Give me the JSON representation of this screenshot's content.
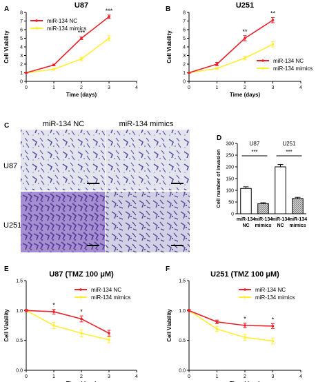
{
  "figure": {
    "panel_letters": [
      "A",
      "B",
      "C",
      "D",
      "E",
      "F"
    ],
    "micrograph": {
      "col_labels": [
        "miR-134 NC",
        "miR-134 mimics"
      ],
      "row_labels": [
        "U87",
        "U251"
      ]
    }
  },
  "chart_data": [
    {
      "panel": "A",
      "type": "line",
      "title": "U87",
      "xlabel": "Time (days)",
      "ylabel": "Cell Viability",
      "xlim": [
        0,
        4
      ],
      "ylim": [
        0,
        8
      ],
      "xticks": [
        0,
        1,
        2,
        3,
        4
      ],
      "yticks": [
        0,
        1,
        2,
        3,
        4,
        5,
        6,
        7,
        8
      ],
      "x": [
        0,
        1,
        2,
        3
      ],
      "series": [
        {
          "name": "miR-134 NC",
          "color": "#e8212a",
          "values": [
            1.0,
            1.9,
            5.0,
            7.5
          ],
          "errors": [
            0.05,
            0.1,
            0.15,
            0.2
          ]
        },
        {
          "name": "miR-134 mimics",
          "color": "#ffee33",
          "values": [
            1.0,
            1.4,
            2.6,
            5.0
          ],
          "errors": [
            0.05,
            0.1,
            0.2,
            0.3
          ]
        }
      ],
      "significance": [
        {
          "x": 2,
          "label": "***"
        },
        {
          "x": 3,
          "label": "***"
        }
      ],
      "legend": "top-left"
    },
    {
      "panel": "B",
      "type": "line",
      "title": "U251",
      "xlabel": "Time (days)",
      "ylabel": "Cell Viability",
      "xlim": [
        0,
        4
      ],
      "ylim": [
        0,
        8
      ],
      "xticks": [
        0,
        1,
        2,
        3,
        4
      ],
      "yticks": [
        0,
        1,
        2,
        3,
        4,
        5,
        6,
        7,
        8
      ],
      "x": [
        0,
        1,
        2,
        3
      ],
      "series": [
        {
          "name": "miR-134 NC",
          "color": "#e8212a",
          "values": [
            1.0,
            2.0,
            5.0,
            7.1
          ],
          "errors": [
            0.05,
            0.2,
            0.3,
            0.3
          ]
        },
        {
          "name": "miR-134 mimics",
          "color": "#ffee33",
          "values": [
            1.0,
            1.5,
            2.7,
            4.3
          ],
          "errors": [
            0.05,
            0.1,
            0.2,
            0.3
          ]
        }
      ],
      "significance": [
        {
          "x": 2,
          "label": "**"
        },
        {
          "x": 3,
          "label": "**"
        }
      ],
      "legend": "right"
    },
    {
      "panel": "D",
      "type": "bar",
      "xlabel": "",
      "ylabel": "Cell number of invasion",
      "ylim": [
        0,
        300
      ],
      "yticks": [
        0,
        50,
        100,
        150,
        200,
        250,
        300
      ],
      "categories": [
        "miR-134 NC",
        "miR-134 mimics",
        "miR-134 NC",
        "miR-134 mimics"
      ],
      "category_lines": [
        [
          "miR-134",
          "NC"
        ],
        [
          "miR-134",
          "mimics"
        ],
        [
          "miR-134",
          "NC"
        ],
        [
          "miR-134",
          "mimics"
        ]
      ],
      "values": [
        108,
        43,
        200,
        65
      ],
      "errors": [
        7,
        4,
        10,
        5
      ],
      "fills": [
        "white",
        "hatched",
        "white",
        "hatched"
      ],
      "groups": [
        {
          "label": "U87",
          "sig": "***"
        },
        {
          "label": "U251",
          "sig": "***"
        }
      ]
    },
    {
      "panel": "E",
      "type": "line",
      "title": "U87 (TMZ 100 μM)",
      "xlabel": "Time (days)",
      "ylabel": "Cell Viability",
      "xlim": [
        0,
        4
      ],
      "ylim": [
        0,
        1.5
      ],
      "xticks": [
        0,
        1,
        2,
        3,
        4
      ],
      "yticks": [
        0.0,
        0.5,
        1.0,
        1.5
      ],
      "ytick_labels": [
        "0.0",
        "0.5",
        "1.0",
        "1.5"
      ],
      "x": [
        0,
        1,
        2,
        3
      ],
      "series": [
        {
          "name": "miR-134 NC",
          "color": "#e8212a",
          "values": [
            1.0,
            0.98,
            0.86,
            0.62
          ],
          "errors": [
            0.02,
            0.04,
            0.05,
            0.05
          ]
        },
        {
          "name": "miR-134 mimics",
          "color": "#ffee33",
          "values": [
            1.0,
            0.75,
            0.62,
            0.51
          ],
          "errors": [
            0.02,
            0.05,
            0.06,
            0.05
          ]
        }
      ],
      "significance": [
        {
          "x": 1,
          "label": "*"
        },
        {
          "x": 2,
          "label": "*"
        }
      ],
      "legend": "top-right"
    },
    {
      "panel": "F",
      "type": "line",
      "title": "U251 (TMZ 100 μM)",
      "xlabel": "Time (days)",
      "ylabel": "Cell Viability",
      "xlim": [
        0,
        4
      ],
      "ylim": [
        0,
        1.5
      ],
      "xticks": [
        0,
        1,
        2,
        3,
        4
      ],
      "yticks": [
        0.0,
        0.5,
        1.0,
        1.5
      ],
      "ytick_labels": [
        "0.0",
        "0.5",
        "1.0",
        "1.5"
      ],
      "x": [
        0,
        1,
        2,
        3
      ],
      "series": [
        {
          "name": "miR-134 NC",
          "color": "#e8212a",
          "values": [
            1.0,
            0.81,
            0.75,
            0.74
          ],
          "errors": [
            0.02,
            0.03,
            0.04,
            0.04
          ]
        },
        {
          "name": "miR-134 mimics",
          "color": "#ffee33",
          "values": [
            1.0,
            0.69,
            0.55,
            0.49
          ],
          "errors": [
            0.02,
            0.04,
            0.05,
            0.05
          ]
        }
      ],
      "significance": [
        {
          "x": 2,
          "label": "*"
        },
        {
          "x": 3,
          "label": "*"
        }
      ],
      "legend": "top-right"
    }
  ]
}
